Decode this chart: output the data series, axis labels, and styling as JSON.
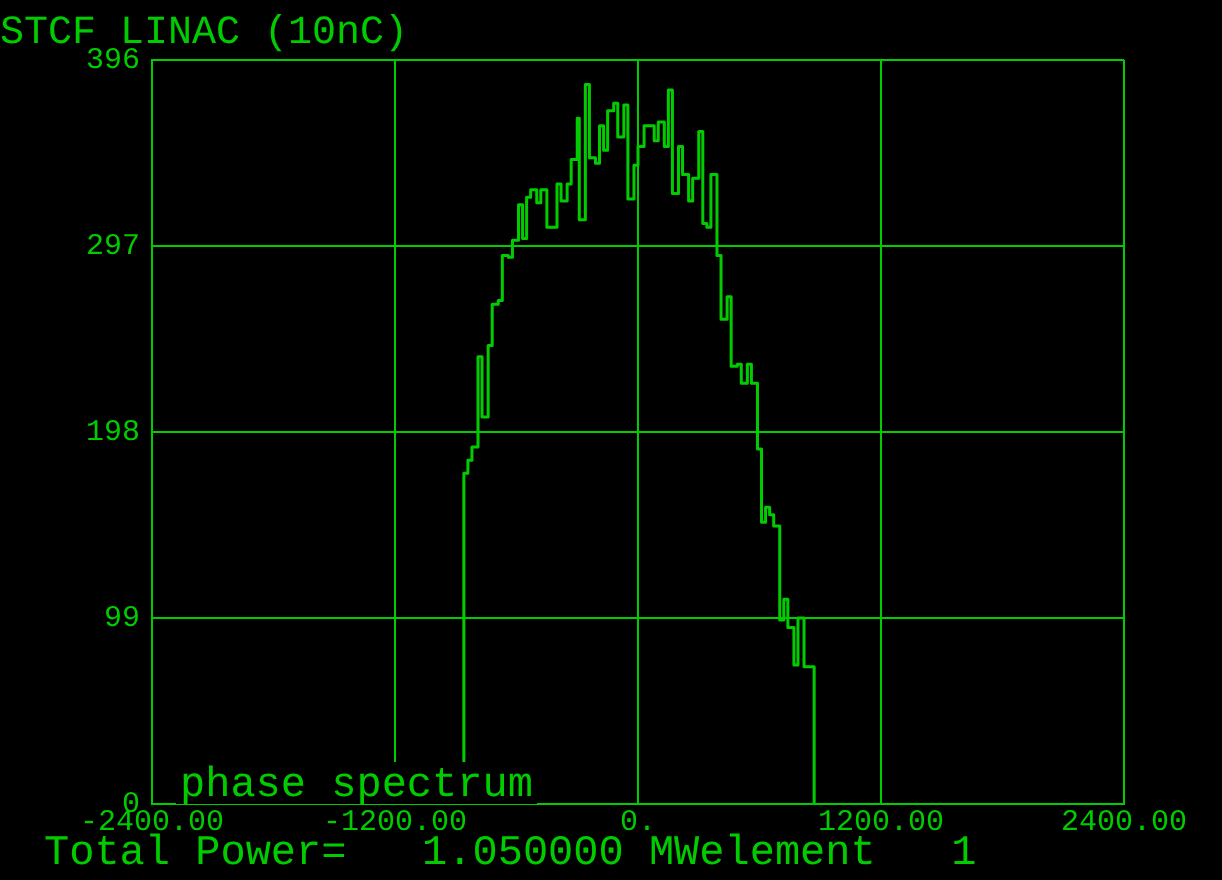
{
  "chart_data": {
    "type": "histogram",
    "title": "STCF LINAC (10nC)",
    "bins": [
      -860,
      -840,
      -820,
      -790,
      -770,
      -740,
      -720,
      -690,
      -670,
      -640,
      -620,
      -590,
      -570,
      -550,
      -530,
      -500,
      -480,
      -450,
      -400,
      -380,
      -350,
      -330,
      -300,
      -290,
      -260,
      -240,
      -210,
      -190,
      -170,
      -150,
      -120,
      -100,
      -70,
      -50,
      -20,
      0,
      30,
      80,
      100,
      130,
      150,
      170,
      200,
      220,
      250,
      270,
      300,
      320,
      340,
      360,
      390,
      410,
      440,
      460,
      490,
      510,
      540,
      560,
      590,
      610,
      630,
      650,
      670,
      700,
      720,
      740,
      770,
      790,
      820,
      870
    ],
    "values": [
      176,
      183,
      190,
      238,
      206,
      244,
      266,
      268,
      292,
      291,
      300,
      319,
      301,
      323,
      327,
      320,
      327,
      307,
      330,
      321,
      330,
      343,
      365,
      311,
      383,
      344,
      341,
      361,
      348,
      369,
      373,
      355,
      372,
      322,
      340,
      350,
      361,
      353,
      363,
      350,
      380,
      325,
      350,
      335,
      321,
      333,
      358,
      309,
      307,
      335,
      292,
      258,
      270,
      233,
      234,
      224,
      234,
      224,
      189,
      150,
      158,
      154,
      148,
      98,
      109,
      94,
      74,
      99,
      73
    ],
    "color": "#00cc00",
    "xlim": [
      -2400,
      2400
    ],
    "xticks": [
      {
        "value": -2400,
        "label": "-2400.00"
      },
      {
        "value": -1200,
        "label": "-1200.00"
      },
      {
        "value": 0,
        "label": "0."
      },
      {
        "value": 1200,
        "label": "1200.00"
      },
      {
        "value": 2400,
        "label": "2400.00"
      }
    ],
    "ylim": [
      0,
      396
    ],
    "yticks": [
      0,
      99,
      198,
      297,
      396
    ],
    "grid": true,
    "annotations": [
      "phase spectrum",
      "Total Power=   1.050000 MWelement   1"
    ]
  }
}
